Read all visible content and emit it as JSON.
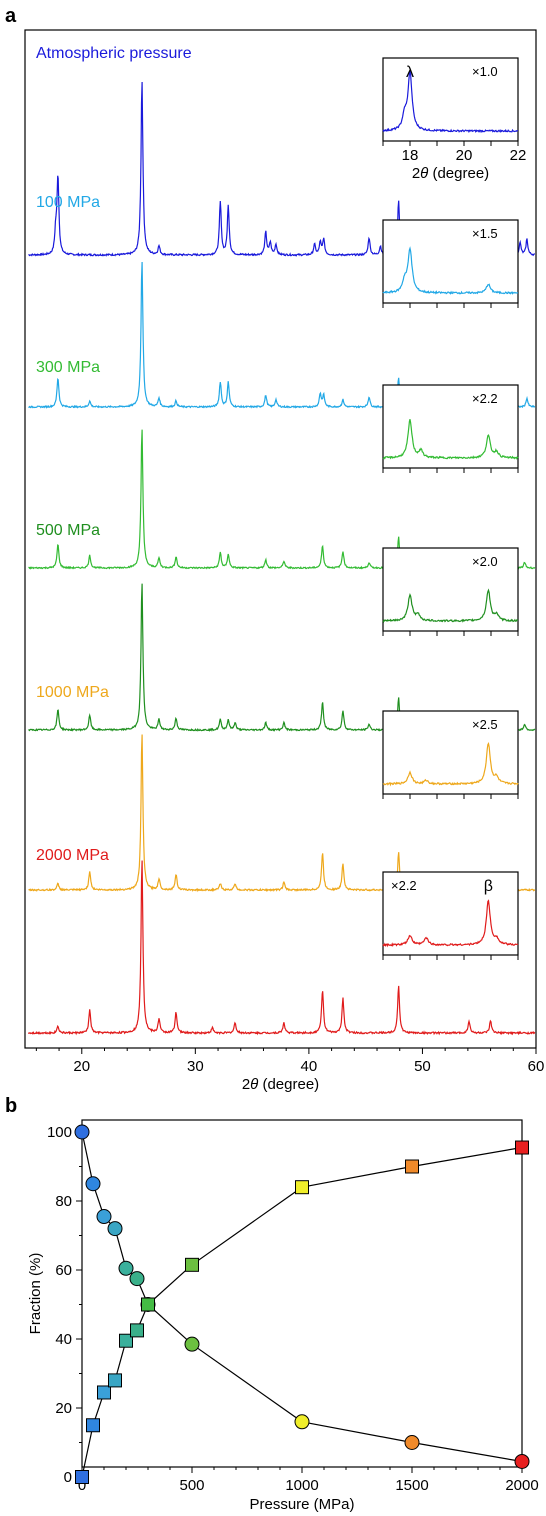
{
  "panels": {
    "a": "a",
    "b": "b"
  },
  "chart_data": [
    {
      "type": "line",
      "panel": "a",
      "xlabel_pre": "2",
      "xlabel_theta": "θ",
      "xlabel_post": " (degree)",
      "xlim": [
        15,
        60
      ],
      "xticks": [
        "20",
        "30",
        "40",
        "50",
        "60"
      ],
      "xtick_values": [
        20,
        30,
        40,
        50,
        60
      ],
      "series": [
        {
          "name": "Atmospheric pressure",
          "color": "#1a1adb",
          "peaks": [
            [
              17.9,
              0.45
            ],
            [
              17.7,
              0.12
            ],
            [
              25.3,
              1.0
            ],
            [
              26.8,
              0.05
            ],
            [
              32.2,
              0.3
            ],
            [
              32.9,
              0.28
            ],
            [
              36.2,
              0.13
            ],
            [
              36.6,
              0.07
            ],
            [
              37.1,
              0.06
            ],
            [
              40.5,
              0.06
            ],
            [
              41.0,
              0.07
            ],
            [
              41.3,
              0.09
            ],
            [
              45.3,
              0.1
            ],
            [
              46.3,
              0.05
            ],
            [
              47.9,
              0.31
            ],
            [
              49.2,
              0.04
            ],
            [
              51.0,
              0.05
            ],
            [
              52.2,
              0.04
            ],
            [
              54.0,
              0.05
            ],
            [
              55.5,
              0.08
            ],
            [
              56.2,
              0.06
            ],
            [
              58.6,
              0.07
            ],
            [
              59.2,
              0.09
            ]
          ]
        },
        {
          "name": "100 MPa",
          "color": "#22a8e6",
          "peaks": [
            [
              17.9,
              0.2
            ],
            [
              20.7,
              0.04
            ],
            [
              25.3,
              1.0
            ],
            [
              26.8,
              0.06
            ],
            [
              28.3,
              0.04
            ],
            [
              32.2,
              0.17
            ],
            [
              32.9,
              0.17
            ],
            [
              36.2,
              0.08
            ],
            [
              37.1,
              0.05
            ],
            [
              41.0,
              0.09
            ],
            [
              41.3,
              0.08
            ],
            [
              43.0,
              0.05
            ],
            [
              45.3,
              0.07
            ],
            [
              47.9,
              0.2
            ],
            [
              49.3,
              0.05
            ],
            [
              51.0,
              0.04
            ],
            [
              52.5,
              0.04
            ],
            [
              54.1,
              0.04
            ],
            [
              55.5,
              0.06
            ],
            [
              56.0,
              0.05
            ],
            [
              59.2,
              0.06
            ]
          ]
        },
        {
          "name": "300 MPa",
          "color": "#33bb33",
          "peaks": [
            [
              17.9,
              0.17
            ],
            [
              20.7,
              0.09
            ],
            [
              25.3,
              1.0
            ],
            [
              26.8,
              0.07
            ],
            [
              28.3,
              0.08
            ],
            [
              32.2,
              0.11
            ],
            [
              32.9,
              0.1
            ],
            [
              36.2,
              0.06
            ],
            [
              37.8,
              0.05
            ],
            [
              41.2,
              0.16
            ],
            [
              43.0,
              0.12
            ],
            [
              45.3,
              0.04
            ],
            [
              47.9,
              0.22
            ],
            [
              50.0,
              0.04
            ],
            [
              51.5,
              0.03
            ],
            [
              54.1,
              0.04
            ],
            [
              55.5,
              0.05
            ],
            [
              56.0,
              0.05
            ],
            [
              59.0,
              0.04
            ]
          ]
        },
        {
          "name": "500 MPa",
          "color": "#1f8f1f",
          "peaks": [
            [
              17.9,
              0.14
            ],
            [
              20.7,
              0.1
            ],
            [
              25.3,
              1.0
            ],
            [
              26.8,
              0.07
            ],
            [
              28.3,
              0.08
            ],
            [
              32.2,
              0.07
            ],
            [
              32.9,
              0.07
            ],
            [
              33.5,
              0.05
            ],
            [
              36.2,
              0.05
            ],
            [
              37.8,
              0.05
            ],
            [
              41.2,
              0.19
            ],
            [
              43.0,
              0.13
            ],
            [
              45.3,
              0.04
            ],
            [
              47.9,
              0.22
            ],
            [
              51.5,
              0.03
            ],
            [
              54.1,
              0.05
            ],
            [
              56.0,
              0.06
            ],
            [
              59.0,
              0.04
            ]
          ]
        },
        {
          "name": "1000 MPa",
          "color": "#eea81c",
          "peaks": [
            [
              17.9,
              0.04
            ],
            [
              20.7,
              0.12
            ],
            [
              25.3,
              1.0
            ],
            [
              26.8,
              0.07
            ],
            [
              28.3,
              0.1
            ],
            [
              32.2,
              0.04
            ],
            [
              33.5,
              0.04
            ],
            [
              37.8,
              0.05
            ],
            [
              41.2,
              0.24
            ],
            [
              43.0,
              0.17
            ],
            [
              47.9,
              0.24
            ],
            [
              54.1,
              0.05
            ],
            [
              56.0,
              0.06
            ]
          ]
        },
        {
          "name": "2000 MPa",
          "color": "#e01b1b",
          "peaks": [
            [
              17.9,
              0.04
            ],
            [
              20.7,
              0.13
            ],
            [
              25.3,
              1.0
            ],
            [
              26.8,
              0.08
            ],
            [
              28.3,
              0.12
            ],
            [
              31.5,
              0.03
            ],
            [
              33.5,
              0.06
            ],
            [
              37.8,
              0.06
            ],
            [
              41.2,
              0.25
            ],
            [
              43.0,
              0.2
            ],
            [
              47.9,
              0.27
            ],
            [
              54.1,
              0.07
            ],
            [
              56.0,
              0.07
            ]
          ]
        }
      ],
      "insets": [
        {
          "scale": "×1.0",
          "peak_label": "λ",
          "xticks": [
            "18",
            "20",
            "22"
          ],
          "xlabel_pre": "2",
          "xlabel_theta": "θ",
          "xlabel_post": " (degree)",
          "peaks": [
            [
              18.0,
              1.0
            ],
            [
              17.8,
              0.25
            ]
          ]
        },
        {
          "scale": "×1.5",
          "peak_label": "",
          "peaks": [
            [
              18.0,
              0.75
            ],
            [
              17.8,
              0.2
            ],
            [
              20.9,
              0.15
            ]
          ]
        },
        {
          "scale": "×2.2",
          "peak_label": "",
          "peaks": [
            [
              18.0,
              0.65
            ],
            [
              18.4,
              0.12
            ],
            [
              20.9,
              0.38
            ],
            [
              21.2,
              0.1
            ]
          ]
        },
        {
          "scale": "×2.0",
          "peak_label": "",
          "peaks": [
            [
              18.0,
              0.45
            ],
            [
              18.3,
              0.1
            ],
            [
              20.9,
              0.52
            ],
            [
              21.2,
              0.1
            ]
          ]
        },
        {
          "scale": "×2.5",
          "peak_label": "",
          "peaks": [
            [
              18.0,
              0.2
            ],
            [
              18.6,
              0.06
            ],
            [
              20.9,
              0.7
            ],
            [
              21.2,
              0.1
            ]
          ]
        },
        {
          "scale": "×2.2",
          "peak_label": "β",
          "peaks": [
            [
              18.0,
              0.16
            ],
            [
              18.6,
              0.12
            ],
            [
              20.9,
              0.75
            ],
            [
              21.2,
              0.1
            ]
          ]
        }
      ]
    },
    {
      "type": "scatter",
      "panel": "b",
      "xlabel": "Pressure (MPa)",
      "ylabel": "Fraction (%)",
      "xlim": [
        0,
        2000
      ],
      "ylim": [
        0,
        100
      ],
      "xticks": [
        "0",
        "500",
        "1000",
        "1500",
        "2000"
      ],
      "xtick_values": [
        0,
        500,
        1000,
        1500,
        2000
      ],
      "yticks": [
        "0",
        "20",
        "40",
        "60",
        "80",
        "100"
      ],
      "ytick_values": [
        0,
        20,
        40,
        60,
        80,
        100
      ],
      "series": [
        {
          "marker": "circle",
          "x": [
            0,
            50,
            100,
            150,
            200,
            250,
            300,
            500,
            1000,
            1500,
            2000
          ],
          "y": [
            100,
            85,
            75.5,
            72,
            60.5,
            57.5,
            50,
            38.5,
            16,
            10,
            4.5
          ],
          "colors": [
            "#2f6fe0",
            "#2f86e0",
            "#3aa0d8",
            "#3aa6c4",
            "#3ab09c",
            "#3ab08a",
            "#44bb44",
            "#6cc040",
            "#f0ee2a",
            "#f08a2a",
            "#e82020"
          ]
        },
        {
          "marker": "square",
          "x": [
            0,
            50,
            100,
            150,
            200,
            250,
            300,
            500,
            1000,
            1500,
            2000
          ],
          "y": [
            0,
            15,
            24.5,
            28,
            39.5,
            42.5,
            50,
            61.5,
            84,
            90,
            95.5
          ],
          "colors": [
            "#2f6fe0",
            "#2f86e0",
            "#3aa0d8",
            "#3aa6c4",
            "#3ab09c",
            "#3ab08a",
            "#44bb44",
            "#6cc040",
            "#f0ee2a",
            "#f08a2a",
            "#e82020"
          ]
        }
      ]
    }
  ]
}
